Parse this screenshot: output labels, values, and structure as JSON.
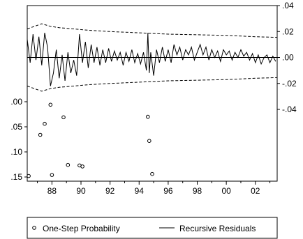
{
  "chart_data": {
    "type": "line",
    "x_tick_labels": [
      "88",
      "90",
      "92",
      "94",
      "96",
      "98",
      "00",
      "02"
    ],
    "x_tick_years": [
      1988,
      1990,
      1992,
      1994,
      1996,
      1998,
      2000,
      2002
    ],
    "x_range": [
      1986.3,
      2003.5
    ],
    "right_axis": {
      "tick_labels": [
        ".04",
        ".02",
        ".00",
        "-.02",
        "-.04"
      ],
      "tick_values": [
        0.04,
        0.02,
        0.0,
        -0.02,
        -0.04
      ],
      "range": [
        -0.04,
        0.04
      ]
    },
    "left_axis": {
      "tick_labels": [
        ".00",
        ".05",
        ".10",
        ".15"
      ],
      "tick_values": [
        0.0,
        0.05,
        0.1,
        0.15
      ],
      "range": [
        0.0,
        0.15
      ]
    },
    "series": [
      {
        "name": "One-Step Probability",
        "style": "circle-markers",
        "axis": "left",
        "points": [
          [
            1986.4,
            0.148
          ],
          [
            1987.2,
            0.066
          ],
          [
            1987.5,
            0.044
          ],
          [
            1987.9,
            0.006
          ],
          [
            1988.0,
            0.146
          ],
          [
            1988.8,
            0.031
          ],
          [
            1989.1,
            0.126
          ],
          [
            1989.9,
            0.127
          ],
          [
            1990.1,
            0.129
          ],
          [
            1994.6,
            0.03
          ],
          [
            1994.7,
            0.078
          ],
          [
            1994.9,
            0.144
          ]
        ]
      },
      {
        "name": "Recursive Residuals",
        "style": "solid-line",
        "axis": "right",
        "points": [
          [
            1986.3,
            0.014
          ],
          [
            1986.5,
            -0.004
          ],
          [
            1986.7,
            0.018
          ],
          [
            1986.9,
            -0.002
          ],
          [
            1987.1,
            0.016
          ],
          [
            1987.3,
            -0.006
          ],
          [
            1987.5,
            0.019
          ],
          [
            1987.7,
            0.008
          ],
          [
            1987.9,
            -0.022
          ],
          [
            1988.1,
            -0.012
          ],
          [
            1988.3,
            0.006
          ],
          [
            1988.5,
            -0.016
          ],
          [
            1988.7,
            0.002
          ],
          [
            1988.9,
            -0.018
          ],
          [
            1989.1,
            0.004
          ],
          [
            1989.3,
            -0.012
          ],
          [
            1989.5,
            -0.002
          ],
          [
            1989.7,
            -0.014
          ],
          [
            1989.9,
            0.018
          ],
          [
            1990.1,
            -0.004
          ],
          [
            1990.3,
            0.012
          ],
          [
            1990.5,
            -0.008
          ],
          [
            1990.7,
            0.01
          ],
          [
            1990.9,
            -0.004
          ],
          [
            1991.1,
            0.008
          ],
          [
            1991.3,
            -0.006
          ],
          [
            1991.5,
            0.006
          ],
          [
            1991.7,
            -0.004
          ],
          [
            1991.9,
            0.007
          ],
          [
            1992.1,
            -0.003
          ],
          [
            1992.3,
            0.005
          ],
          [
            1992.5,
            -0.002
          ],
          [
            1992.7,
            0.004
          ],
          [
            1992.9,
            -0.006
          ],
          [
            1993.1,
            0.004
          ],
          [
            1993.3,
            -0.003
          ],
          [
            1993.5,
            0.006
          ],
          [
            1993.7,
            -0.004
          ],
          [
            1993.9,
            0.003
          ],
          [
            1994.1,
            -0.005
          ],
          [
            1994.3,
            0.004
          ],
          [
            1994.5,
            -0.01
          ],
          [
            1994.6,
            0.019
          ],
          [
            1994.7,
            -0.012
          ],
          [
            1994.8,
            0.004
          ],
          [
            1995.0,
            -0.014
          ],
          [
            1995.2,
            0.006
          ],
          [
            1995.4,
            -0.004
          ],
          [
            1995.6,
            0.008
          ],
          [
            1995.8,
            -0.003
          ],
          [
            1996.0,
            0.006
          ],
          [
            1996.2,
            -0.004
          ],
          [
            1996.4,
            0.01
          ],
          [
            1996.6,
            0.002
          ],
          [
            1996.8,
            0.008
          ],
          [
            1997.0,
            -0.002
          ],
          [
            1997.2,
            0.006
          ],
          [
            1997.4,
            0.002
          ],
          [
            1997.6,
            0.008
          ],
          [
            1997.8,
            -0.002
          ],
          [
            1998.0,
            0.004
          ],
          [
            1998.2,
            0.01
          ],
          [
            1998.4,
            0.002
          ],
          [
            1998.6,
            0.008
          ],
          [
            1998.8,
            -0.002
          ],
          [
            1999.0,
            0.006
          ],
          [
            1999.2,
            0.0
          ],
          [
            1999.4,
            0.005
          ],
          [
            1999.6,
            -0.003
          ],
          [
            1999.8,
            0.006
          ],
          [
            2000.0,
            0.002
          ],
          [
            2000.2,
            0.005
          ],
          [
            2000.4,
            -0.002
          ],
          [
            2000.6,
            0.004
          ],
          [
            2000.8,
            0.0
          ],
          [
            2001.0,
            0.006
          ],
          [
            2001.2,
            0.001
          ],
          [
            2001.4,
            0.004
          ],
          [
            2001.6,
            -0.002
          ],
          [
            2001.8,
            0.003
          ],
          [
            2002.0,
            -0.004
          ],
          [
            2002.2,
            0.002
          ],
          [
            2002.4,
            -0.005
          ],
          [
            2002.6,
            0.0
          ],
          [
            2002.8,
            0.002
          ],
          [
            2003.0,
            -0.004
          ],
          [
            2003.2,
            0.001
          ],
          [
            2003.4,
            -0.003
          ]
        ]
      },
      {
        "style": "dashed-band",
        "axis": "right",
        "upper": [
          [
            1986.3,
            0.022
          ],
          [
            1986.8,
            0.024
          ],
          [
            1987.3,
            0.026
          ],
          [
            1987.9,
            0.024
          ],
          [
            1988.5,
            0.023
          ],
          [
            1989.5,
            0.022
          ],
          [
            1990.5,
            0.021
          ],
          [
            1992.0,
            0.02
          ],
          [
            1994.0,
            0.019
          ],
          [
            1996.0,
            0.018
          ],
          [
            1998.0,
            0.0175
          ],
          [
            2000.0,
            0.017
          ],
          [
            2002.0,
            0.016
          ],
          [
            2003.5,
            0.0155
          ]
        ],
        "lower": [
          [
            1986.3,
            -0.022
          ],
          [
            1986.8,
            -0.024
          ],
          [
            1987.3,
            -0.026
          ],
          [
            1987.9,
            -0.024
          ],
          [
            1988.5,
            -0.023
          ],
          [
            1989.5,
            -0.022
          ],
          [
            1990.5,
            -0.021
          ],
          [
            1992.0,
            -0.02
          ],
          [
            1994.0,
            -0.019
          ],
          [
            1996.0,
            -0.018
          ],
          [
            1998.0,
            -0.0175
          ],
          [
            2000.0,
            -0.017
          ],
          [
            2002.0,
            -0.016
          ],
          [
            2003.5,
            -0.0155
          ]
        ]
      }
    ],
    "legend": {
      "placement": "bottom",
      "entries": [
        "One-Step Probability",
        "Recursive Residuals"
      ]
    }
  }
}
